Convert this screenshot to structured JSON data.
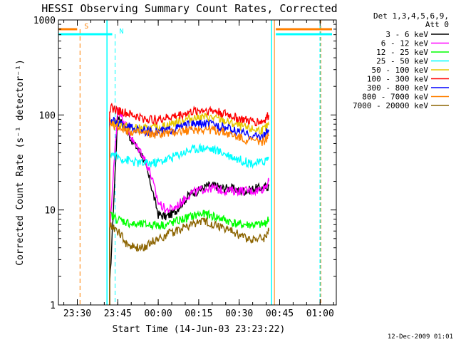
{
  "chart_data": {
    "type": "line",
    "title": "HESSI Observing Summary Count Rates, Corrected",
    "xlabel": "Start Time (14-Jun-03 23:23:22)",
    "ylabel": "Corrected Count Rate (s⁻¹ detector⁻¹)",
    "yscale": "log",
    "ylim": [
      1,
      1000
    ],
    "xlim": [
      "23:23",
      "01:06"
    ],
    "x_tick_labels": [
      "23:30",
      "23:45",
      "00:00",
      "00:15",
      "00:30",
      "00:45",
      "01:00"
    ],
    "y_tick_labels": [
      "1",
      "10",
      "100",
      "1000"
    ],
    "legend": {
      "position": "right",
      "header": [
        "Det 1,3,4,5,6,9,",
        "Att 0"
      ],
      "entries": [
        {
          "label": "3 - 6 keV",
          "color": "#000000"
        },
        {
          "label": "6 - 12 keV",
          "color": "#ff00ff"
        },
        {
          "label": "12 - 25 keV",
          "color": "#00ff00"
        },
        {
          "label": "25 - 50 keV",
          "color": "#00ffff"
        },
        {
          "label": "50 - 100 keV",
          "color": "#e6c800"
        },
        {
          "label": "100 - 300 keV",
          "color": "#ff0000"
        },
        {
          "label": "300 - 800 keV",
          "color": "#0000ff"
        },
        {
          "label": "800 - 7000 keV",
          "color": "#ff8000"
        },
        {
          "label": "7000 - 20000 keV",
          "color": "#8c6400"
        }
      ]
    },
    "flag_markers": [
      {
        "label": "S",
        "color": "#ff8000",
        "x": "23:31"
      },
      {
        "label": "N",
        "color": "#00ffff",
        "x": "23:44"
      }
    ],
    "series": [
      {
        "name": "3 - 6 keV",
        "color": "#000000",
        "x": [
          "23:42",
          "23:45",
          "23:48",
          "23:51",
          "23:54",
          "23:57",
          "00:00",
          "00:03",
          "00:06",
          "00:09",
          "00:12",
          "00:15",
          "00:18",
          "00:21",
          "00:24",
          "00:27",
          "00:30",
          "00:33",
          "00:36",
          "00:39",
          "00:41"
        ],
        "values": [
          1.5,
          100,
          70,
          50,
          38,
          20,
          9,
          8.5,
          9.5,
          12,
          15,
          16,
          18,
          18,
          17,
          17,
          16,
          16,
          17,
          17,
          18
        ]
      },
      {
        "name": "6 - 12 keV",
        "color": "#ff00ff",
        "x": [
          "23:42",
          "23:45",
          "23:48",
          "23:51",
          "23:54",
          "23:57",
          "00:00",
          "00:03",
          "00:06",
          "00:09",
          "00:12",
          "00:15",
          "00:18",
          "00:21",
          "00:24",
          "00:27",
          "00:30",
          "00:33",
          "00:36",
          "00:39",
          "00:41"
        ],
        "values": [
          6,
          120,
          80,
          50,
          40,
          25,
          12,
          10,
          10.5,
          12.5,
          15,
          16,
          17,
          17,
          16,
          16,
          16,
          16,
          16,
          17,
          20
        ]
      },
      {
        "name": "12 - 25 keV",
        "color": "#00ff00",
        "x": [
          "23:42",
          "23:45",
          "23:48",
          "23:51",
          "23:54",
          "23:57",
          "00:00",
          "00:03",
          "00:06",
          "00:09",
          "00:12",
          "00:15",
          "00:18",
          "00:21",
          "00:24",
          "00:27",
          "00:30",
          "00:33",
          "00:36",
          "00:39",
          "00:41"
        ],
        "values": [
          9,
          8,
          7.5,
          7,
          7,
          7,
          7,
          7,
          7.5,
          8,
          8.5,
          9,
          9,
          8.5,
          8,
          7.5,
          7,
          7,
          7,
          7,
          8
        ]
      },
      {
        "name": "25 - 50 keV",
        "color": "#00ffff",
        "x": [
          "23:42",
          "23:45",
          "23:48",
          "23:51",
          "23:54",
          "23:57",
          "00:00",
          "00:03",
          "00:06",
          "00:09",
          "00:12",
          "00:15",
          "00:18",
          "00:21",
          "00:24",
          "00:27",
          "00:30",
          "00:33",
          "00:36",
          "00:39",
          "00:41"
        ],
        "values": [
          40,
          36,
          34,
          32,
          31,
          31,
          32,
          34,
          37,
          40,
          43,
          45,
          45,
          43,
          40,
          37,
          34,
          32,
          31,
          32,
          36
        ]
      },
      {
        "name": "50 - 100 keV",
        "color": "#e6c800",
        "x": [
          "23:42",
          "23:45",
          "23:48",
          "23:51",
          "23:54",
          "23:57",
          "00:00",
          "00:03",
          "00:06",
          "00:09",
          "00:12",
          "00:15",
          "00:18",
          "00:21",
          "00:24",
          "00:27",
          "00:30",
          "00:33",
          "00:36",
          "00:39",
          "00:41"
        ],
        "values": [
          85,
          80,
          76,
          73,
          72,
          72,
          74,
          78,
          83,
          88,
          92,
          95,
          95,
          92,
          88,
          82,
          77,
          72,
          70,
          70,
          78
        ]
      },
      {
        "name": "100 - 300 keV",
        "color": "#ff0000",
        "x": [
          "23:42",
          "23:45",
          "23:48",
          "23:51",
          "23:54",
          "23:57",
          "00:00",
          "00:03",
          "00:06",
          "00:09",
          "00:12",
          "00:15",
          "00:18",
          "00:21",
          "00:24",
          "00:27",
          "00:30",
          "00:33",
          "00:36",
          "00:39",
          "00:41"
        ],
        "values": [
          120,
          112,
          105,
          98,
          93,
          90,
          90,
          93,
          97,
          102,
          107,
          112,
          113,
          110,
          105,
          98,
          92,
          87,
          85,
          86,
          100
        ]
      },
      {
        "name": "300 - 800 keV",
        "color": "#0000ff",
        "x": [
          "23:42",
          "23:45",
          "23:48",
          "23:51",
          "23:54",
          "23:57",
          "00:00",
          "00:03",
          "00:06",
          "00:09",
          "00:12",
          "00:15",
          "00:18",
          "00:21",
          "00:24",
          "00:27",
          "00:30",
          "00:33",
          "00:36",
          "00:39",
          "00:41"
        ],
        "values": [
          88,
          82,
          77,
          72,
          69,
          67,
          67,
          69,
          72,
          76,
          79,
          81,
          81,
          79,
          75,
          70,
          66,
          62,
          60,
          60,
          70
        ]
      },
      {
        "name": "800 - 7000 keV",
        "color": "#ff8000",
        "x": [
          "23:42",
          "23:45",
          "23:48",
          "23:51",
          "23:54",
          "23:57",
          "00:00",
          "00:03",
          "00:06",
          "00:09",
          "00:12",
          "00:15",
          "00:18",
          "00:21",
          "00:24",
          "00:27",
          "00:30",
          "00:33",
          "00:36",
          "00:39",
          "00:41"
        ],
        "values": [
          80,
          75,
          70,
          66,
          64,
          63,
          63,
          64,
          66,
          68,
          70,
          71,
          71,
          69,
          66,
          62,
          58,
          55,
          53,
          53,
          60
        ]
      },
      {
        "name": "7000 - 20000 keV",
        "color": "#8c6400",
        "x": [
          "23:42",
          "23:45",
          "23:48",
          "23:51",
          "23:54",
          "23:57",
          "00:00",
          "00:03",
          "00:06",
          "00:09",
          "00:12",
          "00:15",
          "00:18",
          "00:21",
          "00:24",
          "00:27",
          "00:30",
          "00:33",
          "00:36",
          "00:39",
          "00:41"
        ],
        "values": [
          7,
          6,
          4.5,
          4,
          4,
          4.5,
          5,
          5.5,
          6,
          6.5,
          7,
          7.5,
          7.5,
          7,
          6.5,
          6,
          5.5,
          5,
          5,
          5,
          6
        ]
      }
    ]
  },
  "footer": {
    "date_stamp": "12-Dec-2009 01:01"
  }
}
